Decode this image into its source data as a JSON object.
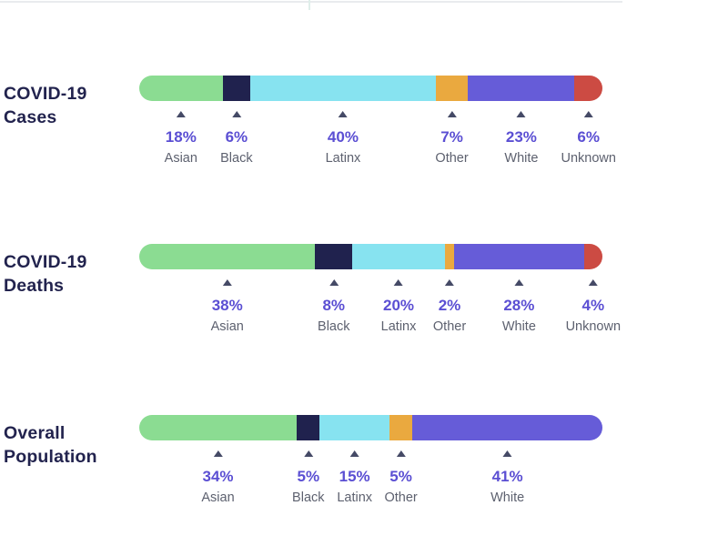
{
  "page": {
    "background": "#ffffff",
    "top_rule_color": "#e9ebee",
    "top_tick_color": "#dfeeea"
  },
  "styles": {
    "title_color": "#22234e",
    "pct_color": "#5b4fd3",
    "name_color": "#5d616f",
    "marker_color": "#454a66"
  },
  "chart_data": {
    "type": "bar",
    "variant": "horizontal_stacked",
    "unit": "percent",
    "categories": [
      "Asian",
      "Black",
      "Latinx",
      "Other",
      "White",
      "Unknown"
    ],
    "palette": {
      "Asian": "#8bdc92",
      "Black": "#20224e",
      "Latinx": "#87e3f0",
      "Other": "#eaa93f",
      "White": "#665cd8",
      "Unknown": "#cc4b43"
    },
    "legend_position": "below-each-segment",
    "axis": "none",
    "rows": [
      {
        "title_line1": "COVID-19",
        "title_line2": "Cases",
        "segments": [
          {
            "category": "Asian",
            "pct": 18,
            "label": "18%"
          },
          {
            "category": "Black",
            "pct": 6,
            "label": "6%"
          },
          {
            "category": "Latinx",
            "pct": 40,
            "label": "40%"
          },
          {
            "category": "Other",
            "pct": 7,
            "label": "7%"
          },
          {
            "category": "White",
            "pct": 23,
            "label": "23%"
          },
          {
            "category": "Unknown",
            "pct": 6,
            "label": "6%"
          }
        ]
      },
      {
        "title_line1": "COVID-19",
        "title_line2": "Deaths",
        "segments": [
          {
            "category": "Asian",
            "pct": 38,
            "label": "38%"
          },
          {
            "category": "Black",
            "pct": 8,
            "label": "8%"
          },
          {
            "category": "Latinx",
            "pct": 20,
            "label": "20%"
          },
          {
            "category": "Other",
            "pct": 2,
            "label": "2%"
          },
          {
            "category": "White",
            "pct": 28,
            "label": "28%"
          },
          {
            "category": "Unknown",
            "pct": 4,
            "label": "4%"
          }
        ]
      },
      {
        "title_line1": "Overall",
        "title_line2": "Population",
        "segments": [
          {
            "category": "Asian",
            "pct": 34,
            "label": "34%"
          },
          {
            "category": "Black",
            "pct": 5,
            "label": "5%"
          },
          {
            "category": "Latinx",
            "pct": 15,
            "label": "15%"
          },
          {
            "category": "Other",
            "pct": 5,
            "label": "5%"
          },
          {
            "category": "White",
            "pct": 41,
            "label": "41%"
          }
        ]
      }
    ]
  }
}
